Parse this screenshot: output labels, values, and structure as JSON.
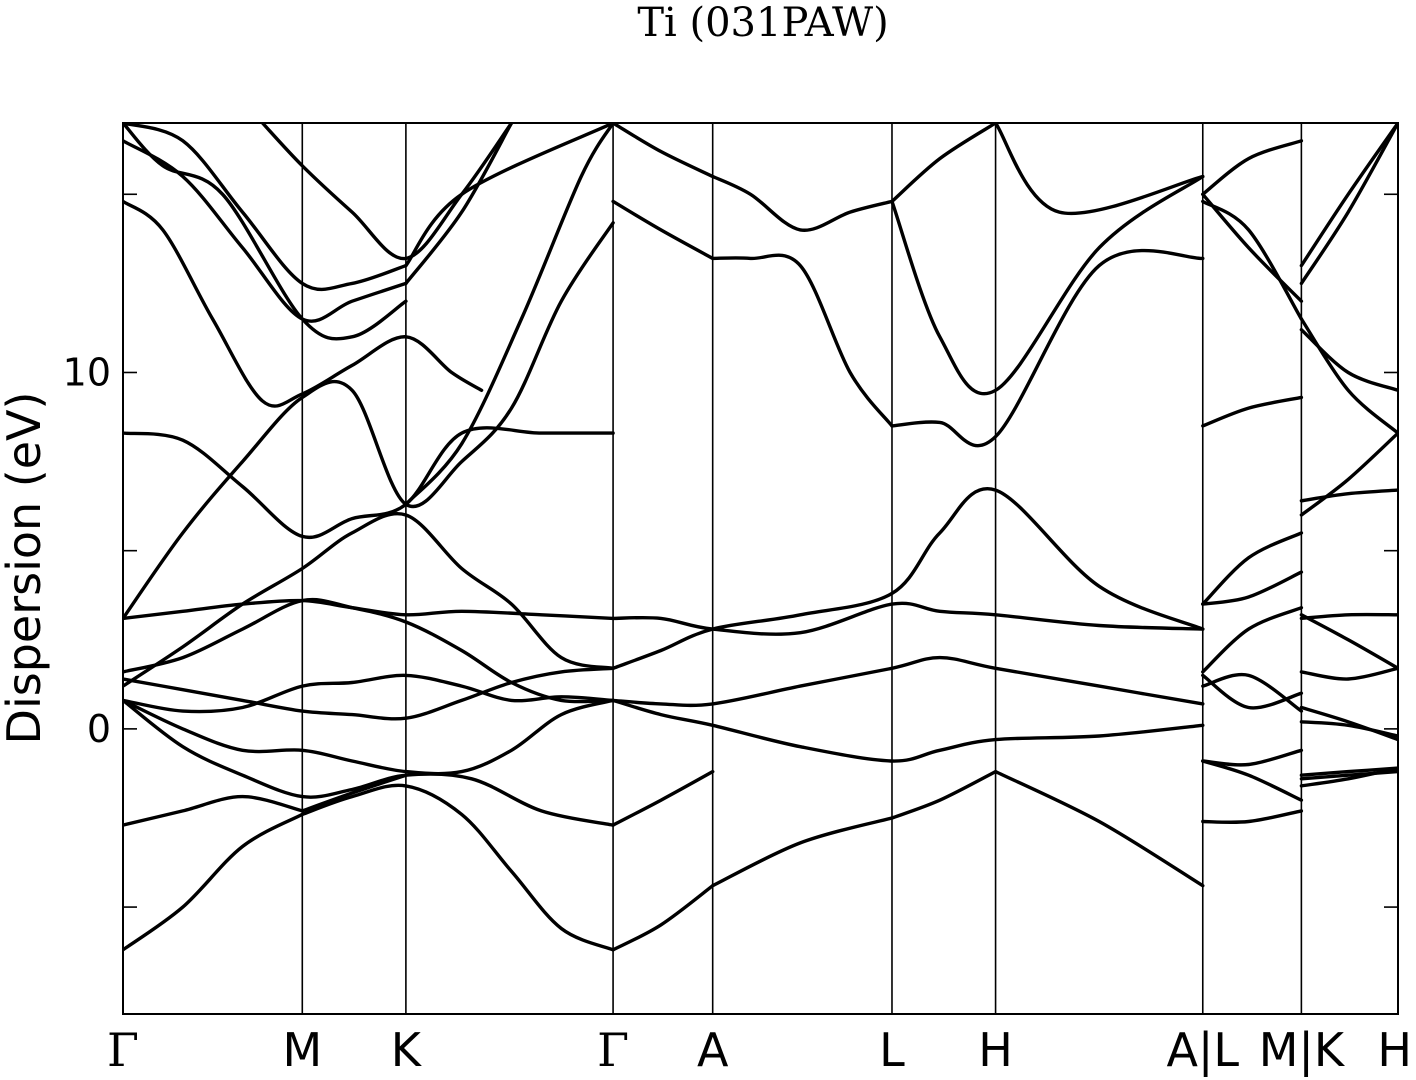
{
  "chart_data": {
    "type": "line",
    "title": "Ti (031PAW)",
    "xlabel": "",
    "ylabel": "Dispersion (eV)",
    "ylim": [
      -8,
      17
    ],
    "yticks": [
      -5,
      0,
      5,
      10,
      15
    ],
    "ytick_labels": [
      "",
      "0",
      "",
      "10",
      ""
    ],
    "xlim": [
      0,
      12.8
    ],
    "k_points": [
      {
        "label": "Γ",
        "x": 0
      },
      {
        "label": "M",
        "x": 1.8
      },
      {
        "label": "K",
        "x": 2.84
      },
      {
        "label": "Γ",
        "x": 4.92
      },
      {
        "label": "A",
        "x": 5.92
      },
      {
        "label": "L",
        "x": 7.72
      },
      {
        "label": "H",
        "x": 8.76
      },
      {
        "label": "A|L",
        "x": 10.84
      },
      {
        "label": "M|K",
        "x": 11.83
      },
      {
        "label": "H",
        "x": 12.8
      }
    ],
    "grid": false,
    "legend": "none",
    "series": [
      {
        "x": [
          0,
          0.6,
          1.2,
          1.8
        ],
        "values": [
          -6.2,
          -5.0,
          -3.3,
          -2.4
        ]
      },
      {
        "x": [
          1.8,
          2.3,
          2.84,
          3.4,
          3.9,
          4.4,
          4.92
        ],
        "values": [
          -2.4,
          -1.9,
          -1.6,
          -2.4,
          -4.0,
          -5.6,
          -6.2
        ]
      },
      {
        "x": [
          4.92,
          5.4,
          5.92
        ],
        "values": [
          -6.2,
          -5.5,
          -4.4
        ]
      },
      {
        "x": [
          5.92,
          6.8,
          7.72
        ],
        "values": [
          -4.4,
          -3.2,
          -2.5
        ]
      },
      {
        "x": [
          7.72,
          8.2,
          8.76
        ],
        "values": [
          -2.5,
          -2.0,
          -1.2
        ]
      },
      {
        "x": [
          8.76,
          9.8,
          10.84
        ],
        "values": [
          -1.2,
          -2.6,
          -4.4
        ]
      },
      {
        "x": [
          10.84,
          11.3,
          11.83
        ],
        "values": [
          -2.6,
          -2.6,
          -2.3
        ]
      },
      {
        "x": [
          11.83,
          12.3,
          12.8
        ],
        "values": [
          -1.3,
          -1.2,
          -1.1
        ]
      },
      {
        "x": [
          0,
          0.6,
          1.2,
          1.8
        ],
        "values": [
          -2.7,
          -2.3,
          -1.9,
          -2.3
        ]
      },
      {
        "x": [
          1.8,
          2.3,
          2.84
        ],
        "values": [
          -2.3,
          -1.8,
          -1.3
        ]
      },
      {
        "x": [
          0,
          0.6,
          1.2,
          1.8,
          2.3,
          2.84,
          3.5,
          4.2,
          4.92
        ],
        "values": [
          0.8,
          -0.5,
          -1.3,
          -1.9,
          -1.7,
          -1.3,
          -1.4,
          -2.3,
          -2.7
        ]
      },
      {
        "x": [
          4.92,
          5.4,
          5.92
        ],
        "values": [
          -2.7,
          -2.0,
          -1.2
        ]
      },
      {
        "x": [
          0,
          0.6,
          1.2,
          1.8,
          2.3,
          2.84,
          3.4,
          3.9,
          4.4,
          4.92
        ],
        "values": [
          0.8,
          0.0,
          -0.6,
          -0.6,
          -0.9,
          -1.2,
          -1.2,
          -0.6,
          0.4,
          0.8
        ]
      },
      {
        "x": [
          4.92,
          5.4,
          5.92,
          6.8,
          7.72,
          8.2,
          8.76,
          9.8,
          10.84
        ],
        "values": [
          0.8,
          0.4,
          0.1,
          -0.5,
          -0.9,
          -0.6,
          -0.3,
          -0.2,
          0.1
        ]
      },
      {
        "x": [
          0,
          0.6,
          1.2,
          1.8,
          2.3,
          2.84,
          3.4,
          3.9,
          4.4,
          4.92
        ],
        "values": [
          0.8,
          0.5,
          0.6,
          1.2,
          1.3,
          1.5,
          1.2,
          0.8,
          0.9,
          0.8
        ]
      },
      {
        "x": [
          4.92,
          5.4,
          5.92,
          6.8,
          7.72,
          8.2,
          8.76,
          9.8,
          10.84
        ],
        "values": [
          0.8,
          0.7,
          0.7,
          1.2,
          1.7,
          2.0,
          1.7,
          1.2,
          0.7
        ]
      },
      {
        "x": [
          0,
          0.6,
          1.2,
          1.8,
          2.3,
          2.84,
          3.4,
          3.9,
          4.4,
          4.92
        ],
        "values": [
          1.4,
          1.1,
          0.8,
          0.5,
          0.4,
          0.3,
          0.8,
          1.3,
          1.6,
          1.7
        ]
      },
      {
        "x": [
          4.92,
          5.4,
          5.92,
          6.8,
          7.72,
          8.2,
          8.76,
          9.8,
          10.84
        ],
        "values": [
          1.7,
          2.2,
          2.8,
          3.2,
          3.8,
          5.5,
          6.7,
          4.0,
          2.8
        ]
      },
      {
        "x": [
          0,
          0.6,
          1.2,
          1.8,
          2.3,
          2.84,
          3.4,
          3.9,
          4.4,
          4.92
        ],
        "values": [
          1.6,
          2.0,
          2.8,
          3.6,
          3.4,
          3.0,
          2.2,
          1.3,
          0.8,
          0.8
        ]
      },
      {
        "x": [
          0,
          0.6,
          1.2,
          1.8,
          2.3,
          2.84,
          3.4,
          4.2,
          4.92
        ],
        "values": [
          3.1,
          3.3,
          3.5,
          3.6,
          3.4,
          3.2,
          3.3,
          3.2,
          3.1
        ]
      },
      {
        "x": [
          4.92,
          5.4,
          5.92,
          6.8,
          7.72,
          8.2,
          8.76,
          9.8,
          10.84
        ],
        "values": [
          3.1,
          3.1,
          2.8,
          2.7,
          3.5,
          3.3,
          3.2,
          2.9,
          2.8
        ]
      },
      {
        "x": [
          0,
          0.6,
          1.2,
          1.8,
          2.3,
          2.84,
          3.4,
          3.9,
          4.4,
          4.92
        ],
        "values": [
          1.2,
          2.3,
          3.5,
          4.5,
          5.5,
          6.0,
          4.5,
          3.5,
          2.0,
          1.7
        ]
      },
      {
        "x": [
          0,
          0.6,
          1.2,
          1.8,
          2.3,
          2.84,
          3.4,
          4.2,
          4.92
        ],
        "values": [
          8.3,
          8.1,
          6.8,
          5.4,
          5.9,
          6.3,
          8.3,
          8.3,
          8.3
        ]
      },
      {
        "x": [
          0,
          0.6,
          1.2,
          1.8,
          2.3,
          2.84,
          3.4,
          3.9,
          4.4,
          4.92
        ],
        "values": [
          3.1,
          5.5,
          7.5,
          9.3,
          9.5,
          6.3,
          7.5,
          9.0,
          12.0,
          14.2
        ]
      },
      {
        "x": [
          0,
          0.4,
          0.9,
          1.4,
          1.8,
          2.3,
          2.84,
          3.3,
          3.6
        ],
        "values": [
          14.8,
          14.0,
          11.5,
          9.2,
          9.4,
          10.2,
          11.0,
          10.0,
          9.5
        ]
      },
      {
        "x": [
          4.92,
          5.4,
          5.92
        ],
        "values": [
          14.8,
          14.0,
          13.2
        ]
      },
      {
        "x": [
          5.92,
          6.3,
          6.8,
          7.3,
          7.72
        ],
        "values": [
          13.2,
          13.2,
          13.0,
          10.0,
          8.5
        ]
      },
      {
        "x": [
          7.72,
          8.2,
          8.76,
          9.8,
          10.84
        ],
        "values": [
          8.5,
          8.6,
          8.2,
          13.0,
          13.2
        ]
      },
      {
        "x": [
          7.72,
          8.2,
          8.76,
          9.8,
          10.84
        ],
        "values": [
          14.8,
          11.0,
          9.5,
          13.5,
          15.5
        ]
      },
      {
        "x": [
          5.92,
          6.3,
          6.8,
          7.3,
          7.72
        ],
        "values": [
          15.5,
          15.0,
          14.0,
          14.5,
          14.8
        ]
      },
      {
        "x": [
          4.92,
          5.4,
          5.92
        ],
        "values": [
          17.0,
          16.2,
          15.5
        ]
      },
      {
        "x": [
          0,
          0.4,
          1.0,
          1.8,
          2.3,
          2.84
        ],
        "values": [
          17.0,
          15.8,
          15.0,
          11.5,
          11.0,
          12.0
        ]
      },
      {
        "x": [
          0,
          0.6,
          1.2,
          1.8,
          2.3,
          2.84
        ],
        "values": [
          16.5,
          15.5,
          13.5,
          11.5,
          12.0,
          12.5
        ]
      },
      {
        "x": [
          0,
          0.6,
          1.2,
          1.8,
          2.3,
          2.84
        ],
        "values": [
          17.0,
          16.5,
          14.5,
          12.5,
          12.5,
          13.0
        ]
      },
      {
        "x": [
          1.4,
          1.8,
          2.3,
          2.84,
          3.4,
          3.9
        ],
        "values": [
          17.0,
          15.8,
          14.5,
          13.2,
          15.0,
          17.0
        ]
      },
      {
        "x": [
          2.84,
          3.4,
          4.0,
          4.6,
          4.92
        ],
        "values": [
          6.3,
          8.0,
          11.5,
          15.5,
          17.0
        ]
      },
      {
        "x": [
          2.84,
          3.4,
          3.9
        ],
        "values": [
          12.5,
          14.5,
          17.0
        ]
      },
      {
        "x": [
          2.84,
          3.4,
          4.92
        ],
        "values": [
          13.0,
          15.0,
          17.0
        ]
      },
      {
        "x": [
          7.72,
          8.2,
          8.76
        ],
        "values": [
          14.8,
          16.0,
          17.0
        ]
      },
      {
        "x": [
          8.76,
          9.4,
          10.84
        ],
        "values": [
          17.0,
          14.5,
          15.5
        ]
      },
      {
        "x": [
          10.84,
          11.3,
          11.83
        ],
        "values": [
          14.8,
          14.0,
          11.5
        ]
      },
      {
        "x": [
          10.84,
          11.3,
          11.83
        ],
        "values": [
          15.0,
          13.5,
          12.0
        ]
      },
      {
        "x": [
          10.84,
          11.3,
          11.83
        ],
        "values": [
          15.0,
          16.0,
          16.5
        ]
      },
      {
        "x": [
          10.84,
          11.3,
          11.83
        ],
        "values": [
          8.5,
          9.0,
          9.3
        ]
      },
      {
        "x": [
          10.84,
          11.3,
          11.83
        ],
        "values": [
          3.5,
          4.8,
          5.5
        ]
      },
      {
        "x": [
          10.84,
          11.3,
          11.83
        ],
        "values": [
          3.5,
          3.7,
          4.4
        ]
      },
      {
        "x": [
          10.84,
          11.3,
          11.83
        ],
        "values": [
          1.6,
          2.8,
          3.4
        ]
      },
      {
        "x": [
          10.84,
          11.3,
          11.83
        ],
        "values": [
          1.5,
          0.6,
          1.0
        ]
      },
      {
        "x": [
          10.84,
          11.3,
          11.83
        ],
        "values": [
          1.2,
          1.5,
          0.5
        ]
      },
      {
        "x": [
          10.84,
          11.3,
          11.83
        ],
        "values": [
          -0.9,
          -1.3,
          -2.0
        ]
      },
      {
        "x": [
          10.84,
          11.3,
          11.83
        ],
        "values": [
          -0.9,
          -1.0,
          -0.6
        ]
      },
      {
        "x": [
          11.83,
          12.3,
          12.8
        ],
        "values": [
          11.2,
          10.0,
          9.5
        ]
      },
      {
        "x": [
          11.83,
          12.3,
          12.8
        ],
        "values": [
          11.5,
          9.5,
          8.3
        ]
      },
      {
        "x": [
          11.83,
          12.3,
          12.8
        ],
        "values": [
          6.4,
          6.6,
          6.7
        ]
      },
      {
        "x": [
          11.83,
          12.3,
          12.8
        ],
        "values": [
          6.0,
          7.0,
          8.3
        ]
      },
      {
        "x": [
          11.83,
          12.3,
          12.8
        ],
        "values": [
          13.0,
          15.0,
          17.0
        ]
      },
      {
        "x": [
          11.83,
          12.3,
          12.8
        ],
        "values": [
          12.5,
          14.5,
          17.0
        ]
      },
      {
        "x": [
          11.83,
          12.3,
          12.8
        ],
        "values": [
          3.1,
          3.2,
          3.2
        ]
      },
      {
        "x": [
          11.83,
          12.3,
          12.8
        ],
        "values": [
          3.2,
          2.5,
          1.7
        ]
      },
      {
        "x": [
          11.83,
          12.3,
          12.8
        ],
        "values": [
          1.6,
          1.4,
          1.7
        ]
      },
      {
        "x": [
          11.83,
          12.3,
          12.8
        ],
        "values": [
          0.6,
          0.2,
          -0.3
        ]
      },
      {
        "x": [
          11.83,
          12.3,
          12.8
        ],
        "values": [
          0.2,
          0.1,
          -0.2
        ]
      },
      {
        "x": [
          11.83,
          12.3,
          12.8
        ],
        "values": [
          -1.4,
          -1.3,
          -1.2
        ]
      },
      {
        "x": [
          11.83,
          12.3,
          12.8
        ],
        "values": [
          -1.6,
          -1.4,
          -1.1
        ]
      }
    ]
  }
}
